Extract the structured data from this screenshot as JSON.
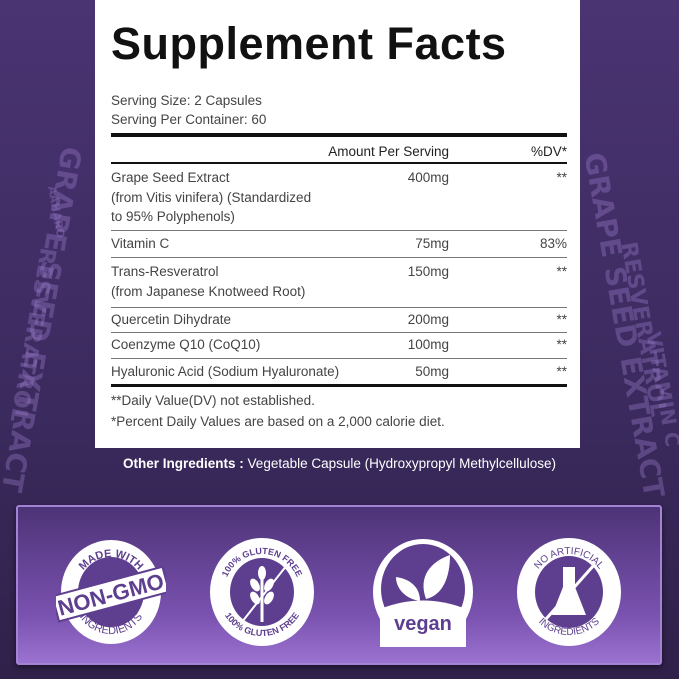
{
  "background": {
    "brand": "AAHARO",
    "bottle_words": [
      "GRAPE SEED EXTRACT",
      "RESVERATROL",
      "VITAMIN C",
      "COQ10",
      "QUERCETIN",
      "HYALURONIC"
    ]
  },
  "facts": {
    "title": "Supplement Facts",
    "serving_size": "Serving Size: 2 Capsules",
    "servings_per_container": "Serving Per Container: 60",
    "header_amount": "Amount Per Serving",
    "header_dv": "%DV*",
    "rows": [
      {
        "name": [
          "Grape Seed Extract",
          "(from Vitis vinifera)  (Standardized",
          "to 95% Polyphenols)"
        ],
        "amount": "400mg",
        "dv": "**"
      },
      {
        "name": [
          "Vitamin C"
        ],
        "amount": "75mg",
        "dv": "83%"
      },
      {
        "name": [
          "Trans-Resveratrol",
          "(from Japanese Knotweed Root)"
        ],
        "amount": "150mg",
        "dv": "**"
      },
      {
        "name": [
          "Quercetin Dihydrate"
        ],
        "amount": "200mg",
        "dv": "**"
      },
      {
        "name": [
          "Coenzyme Q10 (CoQ10)"
        ],
        "amount": "100mg",
        "dv": "**"
      },
      {
        "name": [
          "Hyaluronic Acid (Sodium Hyaluronate)"
        ],
        "amount": "50mg",
        "dv": "**"
      }
    ],
    "footnote1": "**Daily Value(DV) not established.",
    "footnote2": "*Percent Daily Values are based on a 2,000 calorie diet."
  },
  "other_ingredients": {
    "label": "Other Ingredients :",
    "value": " Vegetable Capsule (Hydroxypropyl Methylcellulose)"
  },
  "badges": [
    {
      "icon": "non-gmo-badge-icon",
      "top": "MADE WITH",
      "center": "NON-GMO",
      "bottom": "INGREDIENTS"
    },
    {
      "icon": "gluten-free-badge-icon",
      "top": "100% GLUTEN FREE",
      "bottom": "100% GLUTEN FREE"
    },
    {
      "icon": "vegan-badge-icon",
      "center": "vegan"
    },
    {
      "icon": "no-artificial-badge-icon",
      "top": "NO ARTIFICIAL",
      "bottom": "INGREDIENTS"
    }
  ],
  "colors": {
    "purple_dark": "#3b2a5e",
    "purple_light": "#9b72cf",
    "badge_purple": "#5e3f8f"
  }
}
